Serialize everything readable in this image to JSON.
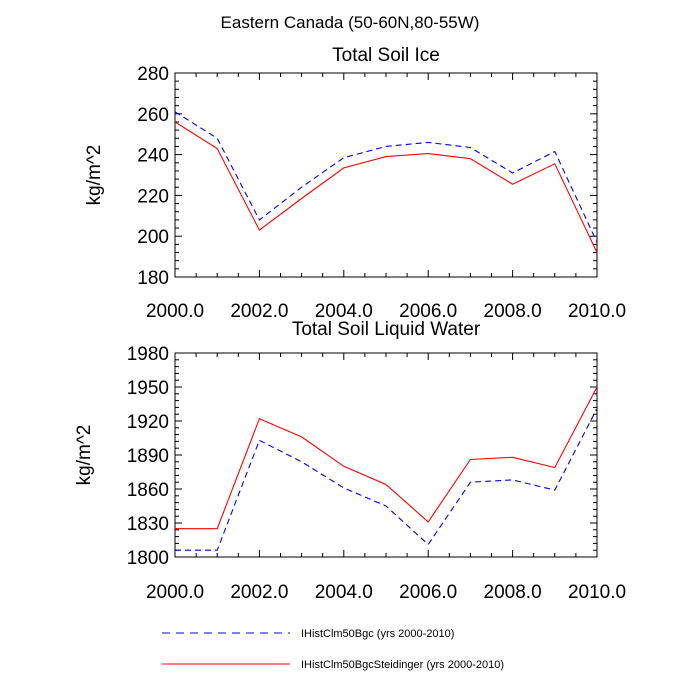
{
  "figure": {
    "suptitle": "Eastern Canada (50-60N,80-55W)"
  },
  "chart_data": [
    {
      "type": "line",
      "title": "Total Soil Ice",
      "xlabel": "",
      "ylabel": "kg/m^2",
      "xlim": [
        2000,
        2010
      ],
      "ylim": [
        180,
        280
      ],
      "xticks": [
        2000,
        2002,
        2004,
        2006,
        2008,
        2010
      ],
      "xtick_labels": [
        "2000.0",
        "2002.0",
        "2004.0",
        "2006.0",
        "2008.0",
        "2010.0"
      ],
      "yticks": [
        180,
        200,
        220,
        240,
        260,
        280
      ],
      "ytick_labels": [
        "180",
        "200",
        "220",
        "240",
        "260",
        "280"
      ],
      "x": [
        2000,
        2001,
        2002,
        2003,
        2004,
        2005,
        2006,
        2007,
        2008,
        2009,
        2010
      ],
      "series": [
        {
          "name": "IHistClm50Bgc (yrs 2000-2010)",
          "color": "#0000ff",
          "dash": "dashed",
          "values": [
            261,
            248,
            208,
            224,
            238.5,
            244,
            246,
            243.5,
            231,
            241.5,
            197
          ]
        },
        {
          "name": "IHistClm50BgcSteidinger (yrs 2000-2010)",
          "color": "#ff0000",
          "dash": "solid",
          "values": [
            256,
            243,
            203,
            218.5,
            233.5,
            239,
            240.5,
            238,
            225.5,
            235.5,
            192
          ]
        }
      ]
    },
    {
      "type": "line",
      "title": "Total Soil Liquid Water",
      "xlabel": "",
      "ylabel": "kg/m^2",
      "xlim": [
        2000,
        2010
      ],
      "ylim": [
        1800,
        1980
      ],
      "xticks": [
        2000,
        2002,
        2004,
        2006,
        2008,
        2010
      ],
      "xtick_labels": [
        "2000.0",
        "2002.0",
        "2004.0",
        "2006.0",
        "2008.0",
        "2010.0"
      ],
      "yticks": [
        1800,
        1830,
        1860,
        1890,
        1920,
        1950,
        1980
      ],
      "ytick_labels": [
        "1800",
        "1830",
        "1860",
        "1890",
        "1920",
        "1950",
        "1980"
      ],
      "x": [
        2000,
        2001,
        2002,
        2003,
        2004,
        2005,
        2006,
        2007,
        2008,
        2009,
        2010
      ],
      "series": [
        {
          "name": "IHistClm50Bgc (yrs 2000-2010)",
          "color": "#0000ff",
          "dash": "dashed",
          "values": [
            1806,
            1806,
            1903,
            1884,
            1861,
            1845,
            1811,
            1866,
            1868,
            1859,
            1931
          ]
        },
        {
          "name": "IHistClm50BgcSteidinger (yrs 2000-2010)",
          "color": "#ff0000",
          "dash": "solid",
          "values": [
            1825,
            1825,
            1922,
            1906,
            1880,
            1864,
            1831,
            1886,
            1888,
            1879,
            1950
          ]
        }
      ]
    }
  ],
  "legend": {
    "placement": "bottom",
    "entries": [
      {
        "label": "IHistClm50Bgc (yrs 2000-2010)",
        "color": "#0000ff",
        "dash": "dashed"
      },
      {
        "label": "IHistClm50BgcSteidinger (yrs 2000-2010)",
        "color": "#ff0000",
        "dash": "solid"
      }
    ]
  }
}
